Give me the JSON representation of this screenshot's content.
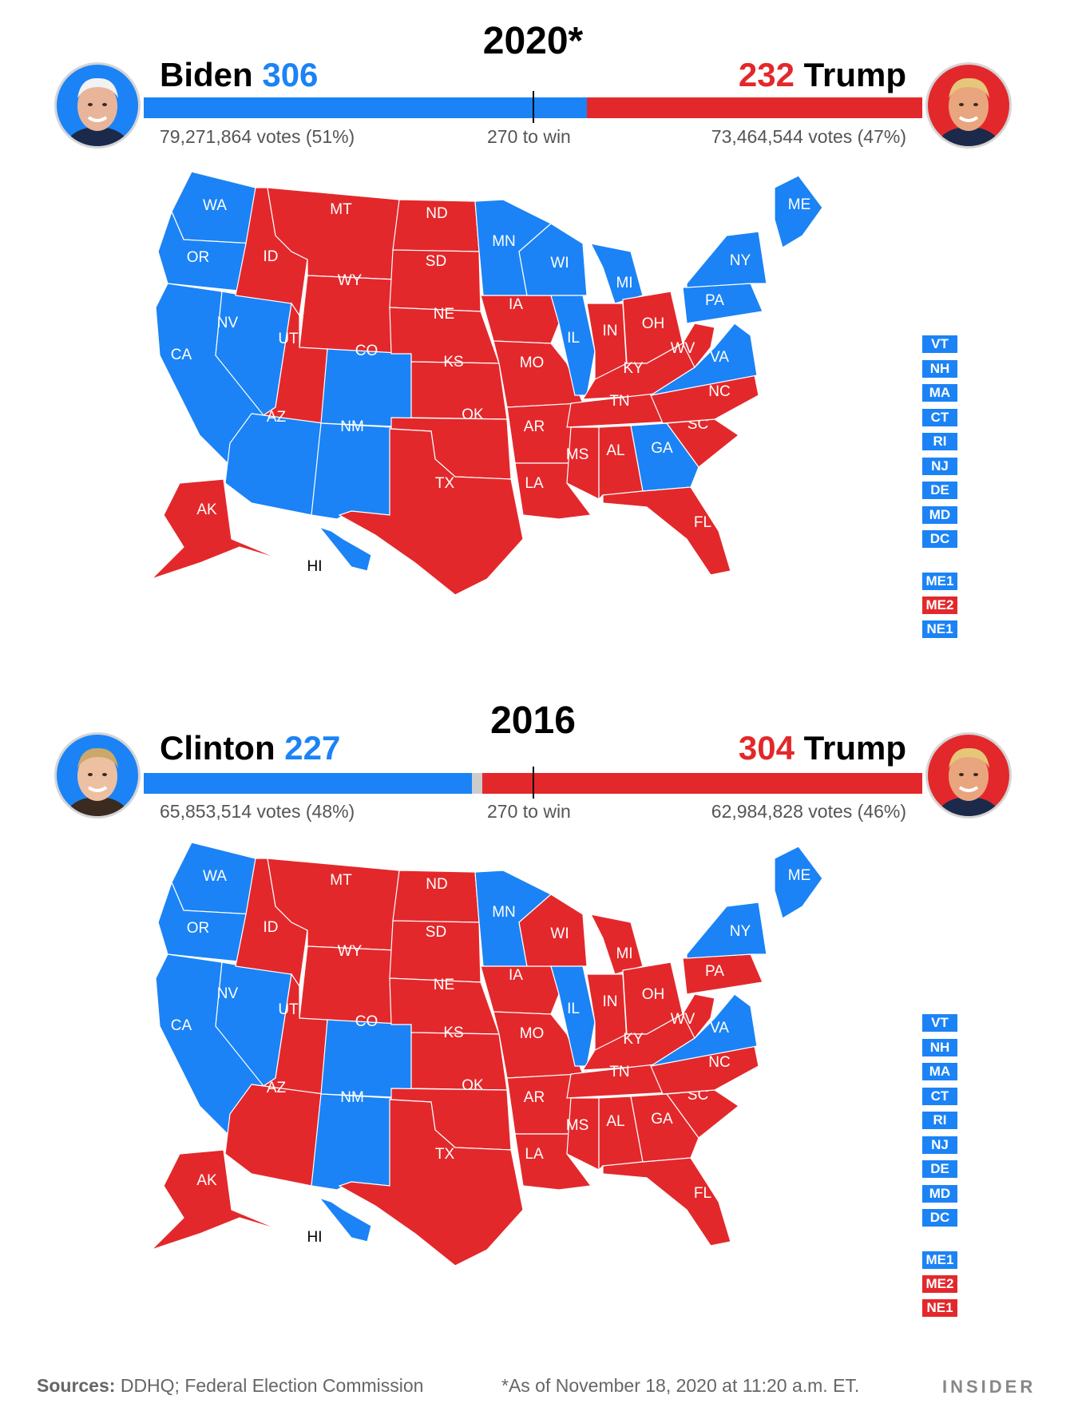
{
  "colors": {
    "blue": "#1b83f5",
    "red": "#e3282b",
    "gray": "#cccccc"
  },
  "elections": [
    {
      "year": "2020*",
      "dem": {
        "name": "Biden",
        "ev": "306",
        "votes": "79,271,864 votes (51%)",
        "avatar": "biden-face-icon"
      },
      "rep": {
        "name": "Trump",
        "ev": "232",
        "votes": "73,464,544 votes (47%)",
        "avatar": "trump-face-icon"
      },
      "bar_shares": {
        "dem": 306,
        "other": 0,
        "rep": 232
      },
      "to_win": "270 to win",
      "states": {
        "WA": "D",
        "OR": "D",
        "CA": "D",
        "NV": "D",
        "ID": "R",
        "MT": "R",
        "WY": "R",
        "UT": "R",
        "AZ": "D",
        "CO": "D",
        "NM": "D",
        "ND": "R",
        "SD": "R",
        "NE": "R",
        "KS": "R",
        "OK": "R",
        "TX": "R",
        "MN": "D",
        "IA": "R",
        "MO": "R",
        "AR": "R",
        "LA": "R",
        "WI": "D",
        "IL": "D",
        "MI": "D",
        "IN": "R",
        "OH": "R",
        "KY": "R",
        "TN": "R",
        "MS": "R",
        "AL": "R",
        "GA": "D",
        "FL": "R",
        "SC": "R",
        "NC": "R",
        "VA": "D",
        "WV": "R",
        "PA": "D",
        "NY": "D",
        "ME": "D",
        "AK": "R",
        "HI": "D"
      },
      "small_states": [
        {
          "label": "VT",
          "party": "D"
        },
        {
          "label": "NH",
          "party": "D"
        },
        {
          "label": "MA",
          "party": "D"
        },
        {
          "label": "CT",
          "party": "D"
        },
        {
          "label": "RI",
          "party": "D"
        },
        {
          "label": "NJ",
          "party": "D"
        },
        {
          "label": "DE",
          "party": "D"
        },
        {
          "label": "MD",
          "party": "D"
        },
        {
          "label": "DC",
          "party": "D"
        }
      ],
      "districts": [
        {
          "label": "ME1",
          "party": "D"
        },
        {
          "label": "ME2",
          "party": "R"
        },
        {
          "label": "NE1",
          "party": "D"
        }
      ]
    },
    {
      "year": "2016",
      "dem": {
        "name": "Clinton",
        "ev": "227",
        "votes": "65,853,514 votes (48%)",
        "avatar": "clinton-face-icon"
      },
      "rep": {
        "name": "Trump",
        "ev": "304",
        "votes": "62,984,828 votes (46%)",
        "avatar": "trump-face-icon"
      },
      "bar_shares": {
        "dem": 227,
        "other": 7,
        "rep": 304
      },
      "to_win": "270 to win",
      "states": {
        "WA": "D",
        "OR": "D",
        "CA": "D",
        "NV": "D",
        "ID": "R",
        "MT": "R",
        "WY": "R",
        "UT": "R",
        "AZ": "R",
        "CO": "D",
        "NM": "D",
        "ND": "R",
        "SD": "R",
        "NE": "R",
        "KS": "R",
        "OK": "R",
        "TX": "R",
        "MN": "D",
        "IA": "R",
        "MO": "R",
        "AR": "R",
        "LA": "R",
        "WI": "R",
        "IL": "D",
        "MI": "R",
        "IN": "R",
        "OH": "R",
        "KY": "R",
        "TN": "R",
        "MS": "R",
        "AL": "R",
        "GA": "R",
        "FL": "R",
        "SC": "R",
        "NC": "R",
        "VA": "D",
        "WV": "R",
        "PA": "R",
        "NY": "D",
        "ME": "D",
        "AK": "R",
        "HI": "D"
      },
      "small_states": [
        {
          "label": "VT",
          "party": "D"
        },
        {
          "label": "NH",
          "party": "D"
        },
        {
          "label": "MA",
          "party": "D"
        },
        {
          "label": "CT",
          "party": "D"
        },
        {
          "label": "RI",
          "party": "D"
        },
        {
          "label": "NJ",
          "party": "D"
        },
        {
          "label": "DE",
          "party": "D"
        },
        {
          "label": "MD",
          "party": "D"
        },
        {
          "label": "DC",
          "party": "D"
        }
      ],
      "districts": [
        {
          "label": "ME1",
          "party": "D"
        },
        {
          "label": "ME2",
          "party": "R"
        },
        {
          "label": "NE1",
          "party": "R"
        }
      ]
    }
  ],
  "footer": {
    "sources_label": "Sources:",
    "sources_text": " DDHQ; Federal Election Commission",
    "note": "*As of November 18, 2020 at 11:20 a.m. ET.",
    "logo": "INSIDER"
  }
}
